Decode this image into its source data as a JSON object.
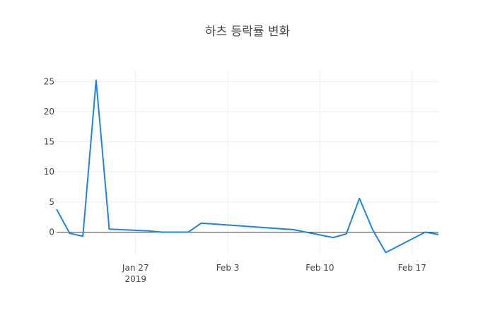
{
  "chart_data": {
    "type": "line",
    "title": "하츠 등락률 변화",
    "xlabel": "",
    "ylabel": "",
    "x_range": [
      "2019-01-21",
      "2019-02-19"
    ],
    "ylim": [
      -3.7,
      26.8
    ],
    "grid": true,
    "x_ticks": [
      {
        "date": "2019-01-27",
        "label": "Jan 27",
        "sublabel": "2019"
      },
      {
        "date": "2019-02-03",
        "label": "Feb 3",
        "sublabel": ""
      },
      {
        "date": "2019-02-10",
        "label": "Feb 10",
        "sublabel": ""
      },
      {
        "date": "2019-02-17",
        "label": "Feb 17",
        "sublabel": ""
      }
    ],
    "y_ticks": [
      0,
      5,
      10,
      15,
      20,
      25
    ],
    "series": [
      {
        "color": "#1f84e0",
        "x": [
          "2019-01-21",
          "2019-01-22",
          "2019-01-23",
          "2019-01-24",
          "2019-01-25",
          "2019-01-28",
          "2019-01-29",
          "2019-01-30",
          "2019-01-31",
          "2019-02-01",
          "2019-02-08",
          "2019-02-11",
          "2019-02-12",
          "2019-02-13",
          "2019-02-14",
          "2019-02-15",
          "2019-02-18",
          "2019-02-19"
        ],
        "y": [
          3.8,
          -0.2,
          -0.7,
          25.2,
          0.5,
          0.2,
          0.0,
          0.0,
          0.0,
          1.5,
          0.4,
          -0.9,
          -0.3,
          5.6,
          0.4,
          -3.4,
          0.0,
          -0.4
        ]
      }
    ]
  }
}
